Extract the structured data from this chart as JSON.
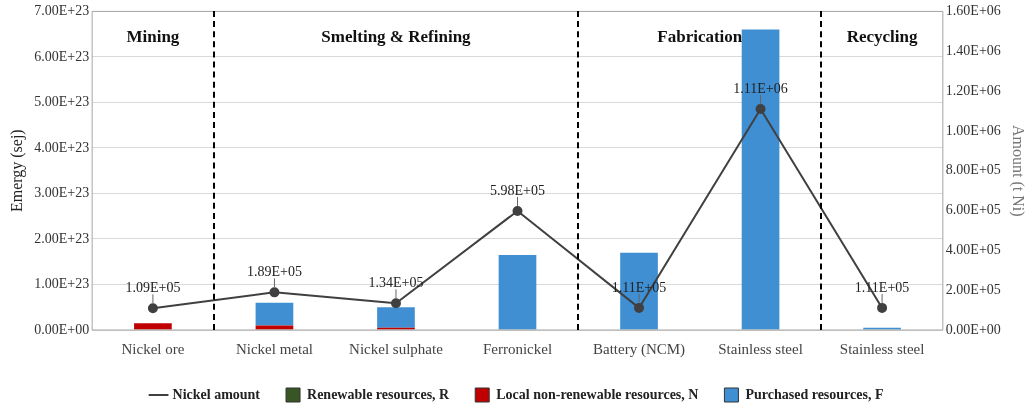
{
  "chart_data": {
    "type": "bar",
    "stacked": true,
    "ylabel": "Emergy (sej)",
    "y2label": "Amount (t Ni)",
    "categories": [
      "Nickel ore",
      "Nickel metal",
      "Nickel sulphate",
      "Ferronickel",
      "Battery (NCM)",
      "Stainless steel",
      "Stainless steel"
    ],
    "series": [
      {
        "name": "Renewable resources, R",
        "color": "#375623",
        "values": [
          0,
          0,
          0,
          0,
          0,
          0,
          0
        ]
      },
      {
        "name": "Local non-renewable resources, N",
        "color": "#c00000",
        "values": [
          1.5e+22,
          1e+22,
          5e+21,
          0,
          0,
          0,
          0
        ]
      },
      {
        "name": "Purchased resources, F",
        "color": "#3f8fd2",
        "values": [
          0,
          5e+22,
          4.5e+22,
          1.65e+23,
          1.7e+23,
          6.6e+23,
          5e+21
        ]
      },
      {
        "name": "Nickel amount",
        "type": "line",
        "axis": "y2",
        "color": "#404040",
        "marker": "circle",
        "values": [
          109000,
          189000,
          134000,
          598000,
          111000,
          1110000,
          111000
        ],
        "value_labels": [
          "1.09E+05",
          "1.89E+05",
          "1.34E+05",
          "5.98E+05",
          "1.11E+05",
          "1.11E+06",
          "1.11E+05"
        ]
      }
    ],
    "ylim": [
      0,
      7e+23
    ],
    "yticks": [
      {
        "value": 0,
        "label": "0.00E+00"
      },
      {
        "value": 1e+23,
        "label": "1.00E+23"
      },
      {
        "value": 2e+23,
        "label": "2.00E+23"
      },
      {
        "value": 3e+23,
        "label": "3.00E+23"
      },
      {
        "value": 4e+23,
        "label": "4.00E+23"
      },
      {
        "value": 5e+23,
        "label": "5.00E+23"
      },
      {
        "value": 6e+23,
        "label": "6.00E+23"
      },
      {
        "value": 7e+23,
        "label": "7.00E+23"
      }
    ],
    "y2lim": [
      0,
      1600000
    ],
    "y2ticks": [
      {
        "value": 0,
        "label": "0.00E+00"
      },
      {
        "value": 200000,
        "label": "2.00E+05"
      },
      {
        "value": 400000,
        "label": "4.00E+05"
      },
      {
        "value": 600000,
        "label": "6.00E+05"
      },
      {
        "value": 800000,
        "label": "8.00E+05"
      },
      {
        "value": 1000000,
        "label": "1.00E+06"
      },
      {
        "value": 1200000,
        "label": "1.20E+06"
      },
      {
        "value": 1400000,
        "label": "1.40E+06"
      },
      {
        "value": 1600000,
        "label": "1.60E+06"
      }
    ],
    "annotations": [
      "Mining",
      "Smelting & Refining",
      "Fabrication",
      "Recycling"
    ],
    "grid": "y",
    "legend": "bottom"
  }
}
